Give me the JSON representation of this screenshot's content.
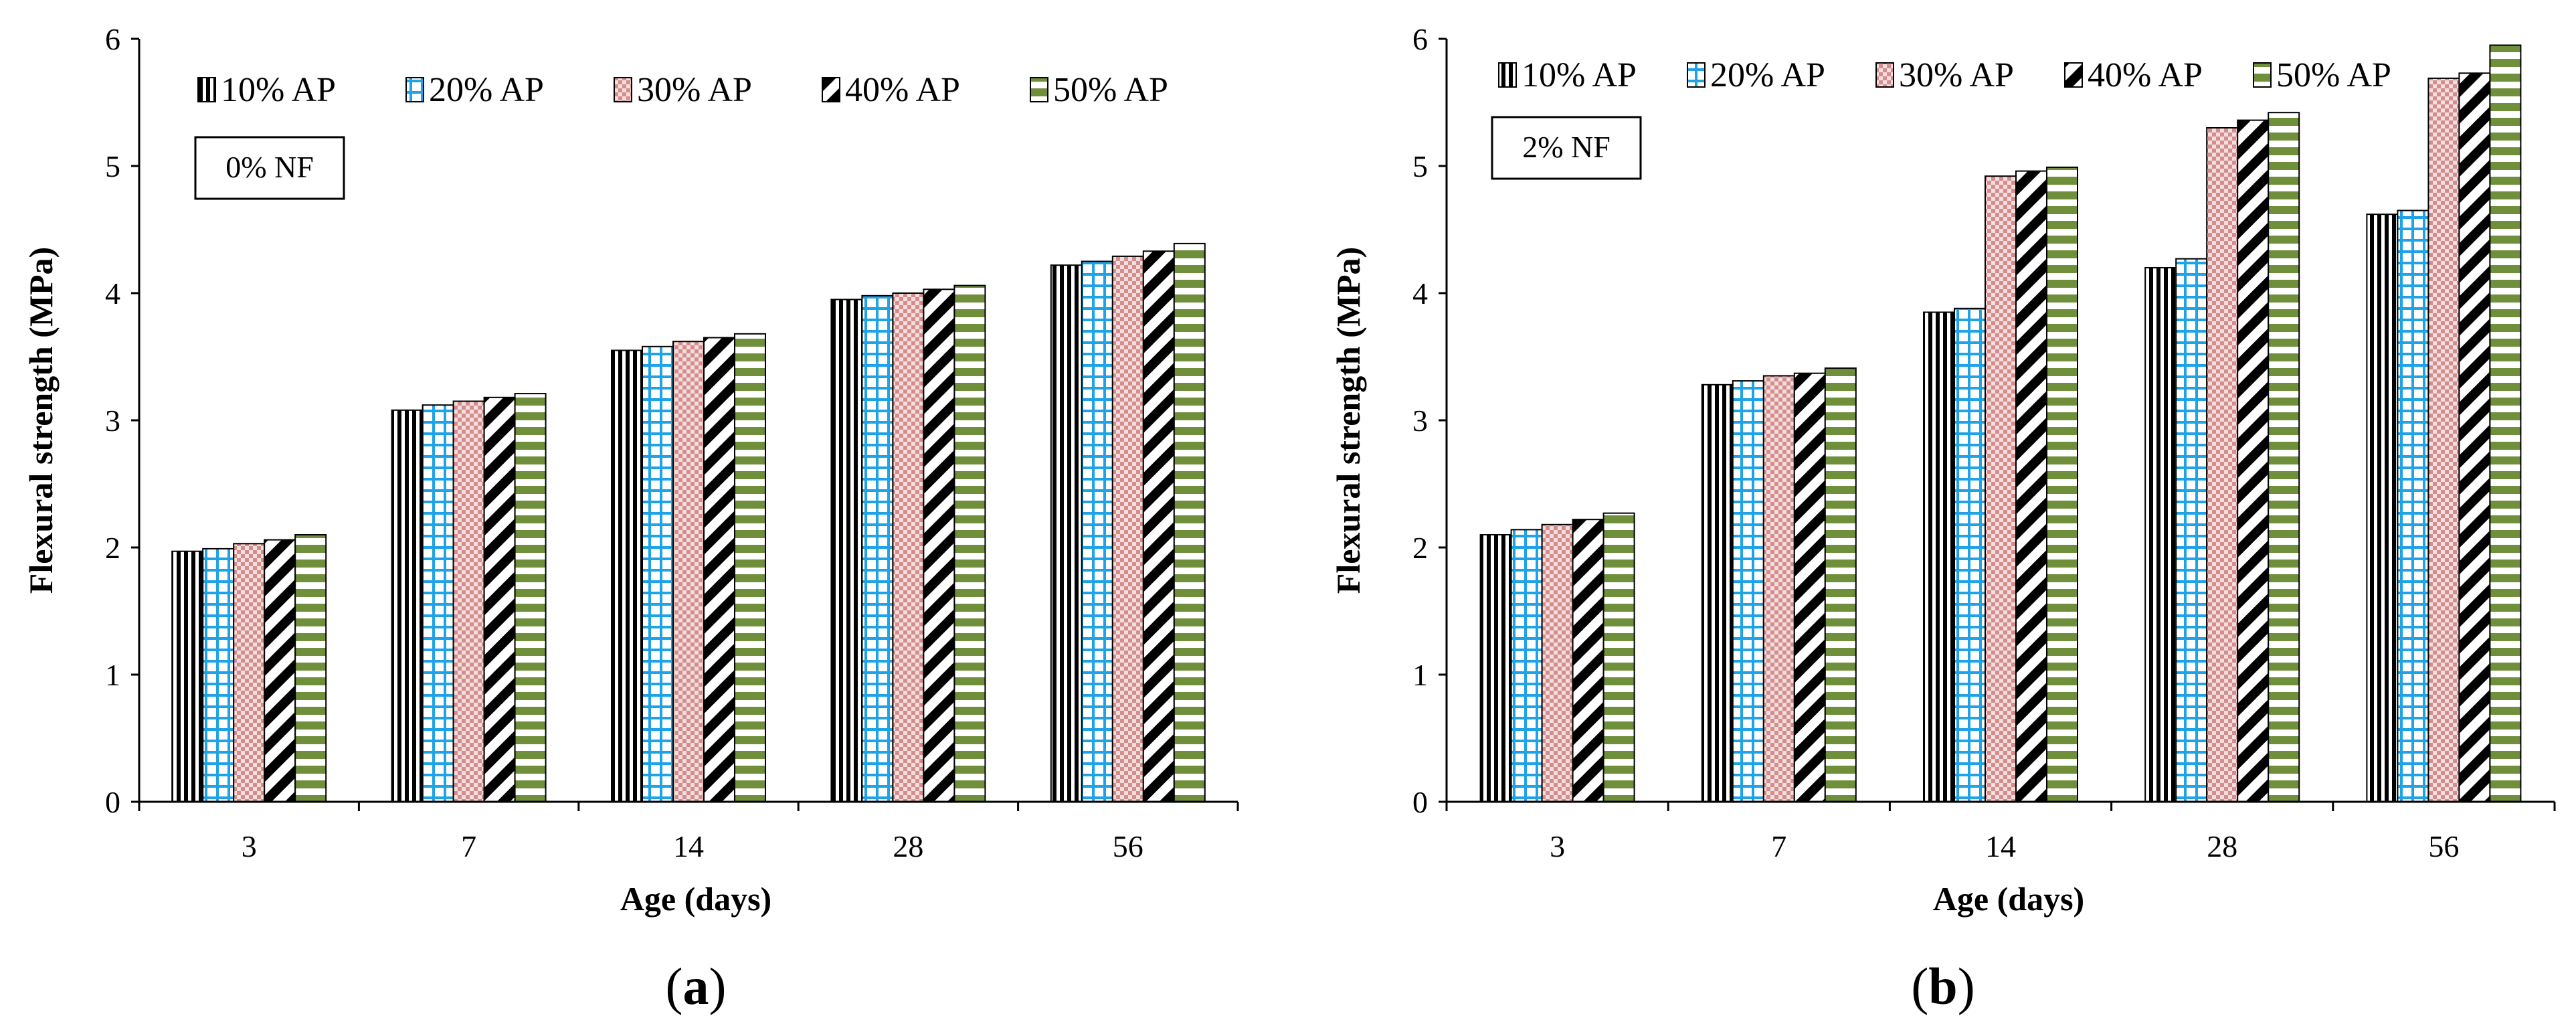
{
  "chart_data": [
    {
      "type": "bar",
      "panel_label": "a",
      "annotation": "0% NF",
      "categories": [
        "3",
        "7",
        "14",
        "28",
        "56"
      ],
      "series": [
        {
          "name": "10% AP",
          "pattern": "vertical-black",
          "values": [
            1.97,
            3.08,
            3.55,
            3.95,
            4.22
          ]
        },
        {
          "name": "20% AP",
          "pattern": "grid-blue",
          "values": [
            1.99,
            3.12,
            3.58,
            3.98,
            4.25
          ]
        },
        {
          "name": "30% AP",
          "pattern": "check-pink",
          "values": [
            2.03,
            3.15,
            3.62,
            4.0,
            4.29
          ]
        },
        {
          "name": "40% AP",
          "pattern": "diag-black",
          "values": [
            2.06,
            3.18,
            3.65,
            4.03,
            4.33
          ]
        },
        {
          "name": "50% AP",
          "pattern": "horiz-green",
          "values": [
            2.1,
            3.21,
            3.68,
            4.06,
            4.39
          ]
        }
      ],
      "xlabel": "Age (days)",
      "ylabel": "Flexural strength (MPa)",
      "ylim": [
        0,
        6
      ],
      "yticks": [
        "0",
        "1",
        "2",
        "3",
        "4",
        "5",
        "6"
      ],
      "legend": "top-left"
    },
    {
      "type": "bar",
      "panel_label": "b",
      "annotation": "2% NF",
      "categories": [
        "3",
        "7",
        "14",
        "28",
        "56"
      ],
      "series": [
        {
          "name": "10% AP",
          "pattern": "vertical-black",
          "values": [
            2.1,
            3.28,
            3.85,
            4.2,
            4.62
          ]
        },
        {
          "name": "20% AP",
          "pattern": "grid-blue",
          "values": [
            2.14,
            3.31,
            3.88,
            4.27,
            4.65
          ]
        },
        {
          "name": "30% AP",
          "pattern": "check-pink",
          "values": [
            2.18,
            3.35,
            4.92,
            5.3,
            5.69
          ]
        },
        {
          "name": "40% AP",
          "pattern": "diag-black",
          "values": [
            2.22,
            3.37,
            4.96,
            5.36,
            5.73
          ]
        },
        {
          "name": "50% AP",
          "pattern": "horiz-green",
          "values": [
            2.27,
            3.41,
            4.99,
            5.42,
            5.95
          ]
        }
      ],
      "xlabel": "Age (days)",
      "ylabel": "Flexural strength (MPa)",
      "ylim": [
        0,
        6
      ],
      "yticks": [
        "0",
        "1",
        "2",
        "3",
        "4",
        "5",
        "6"
      ],
      "legend": "top-left"
    }
  ],
  "colors": {
    "black": "#000000",
    "blue": "#1fa3e6",
    "pink": "#d48c8c",
    "green": "#6f8f3b"
  }
}
